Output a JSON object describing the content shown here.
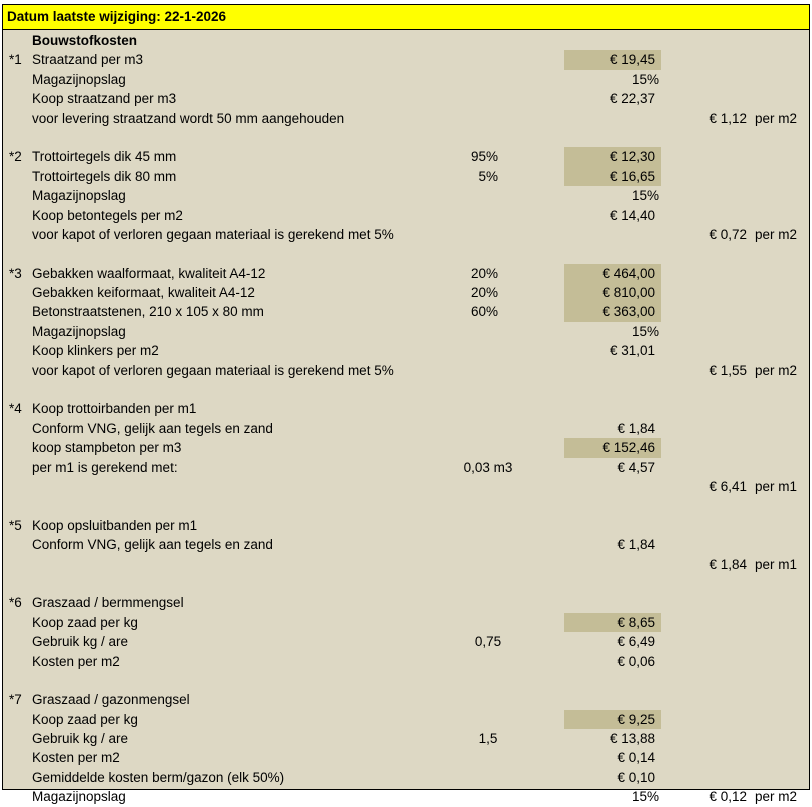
{
  "header": {
    "title": "Datum laatste wijziging: 22-1-2026"
  },
  "colors": {
    "header_bg": "#ffff00",
    "sheet_bg": "#ddd8c4",
    "input_cell_bg": "#c4bd97"
  },
  "rows": [
    {
      "label": "Bouwstofkosten",
      "bold": true
    },
    {
      "prefix": "*1",
      "label": "Straatzand per m3",
      "value": "€ 19,45",
      "highlight": true
    },
    {
      "label": "Magazijnopslag",
      "value": "15%"
    },
    {
      "label": "Koop straatzand per m3",
      "value": "€ 22,37"
    },
    {
      "label": "voor levering straatzand wordt 50 mm aangehouden",
      "total": "€ 1,12",
      "unit": "per m2"
    },
    {},
    {
      "prefix": "*2",
      "label": "Trottoirtegels dik 45 mm",
      "pct": "95%",
      "value": "€ 12,30",
      "highlight": true
    },
    {
      "label": "Trottoirtegels dik 80 mm",
      "pct": "5%",
      "value": "€ 16,65",
      "highlight": true
    },
    {
      "label": "Magazijnopslag",
      "value": "15%"
    },
    {
      "label": "Koop betontegels per m2",
      "value": "€ 14,40"
    },
    {
      "label": "voor kapot of verloren gegaan materiaal is gerekend met 5%",
      "total": "€ 0,72",
      "unit": "per m2"
    },
    {},
    {
      "prefix": "*3",
      "label": "Gebakken waalformaat, kwaliteit A4-12",
      "pct": "20%",
      "value": "€ 464,00",
      "highlight": true
    },
    {
      "label": "Gebakken keiformaat, kwaliteit A4-12",
      "pct": "20%",
      "value": "€ 810,00",
      "highlight": true
    },
    {
      "label": "Betonstraatstenen, 210 x 105 x 80 mm",
      "pct": "60%",
      "value": "€ 363,00",
      "highlight": true
    },
    {
      "label": "Magazijnopslag",
      "value": "15%"
    },
    {
      "label": "Koop klinkers per m2",
      "value": "€ 31,01"
    },
    {
      "label": "voor kapot of verloren gegaan materiaal is gerekend met 5%",
      "total": "€ 1,55",
      "unit": "per m2"
    },
    {},
    {
      "prefix": "*4",
      "label": "Koop trottoirbanden per m1"
    },
    {
      "label": "Conform VNG, gelijk aan tegels en zand",
      "value": "€ 1,84"
    },
    {
      "label": "koop stampbeton per m3",
      "value": "€ 152,46",
      "highlight": true
    },
    {
      "label": "per m1 is gerekend met:",
      "pct": "0,03 m3",
      "value": "€ 4,57"
    },
    {
      "total": "€ 6,41",
      "unit": "per m1"
    },
    {},
    {
      "prefix": "*5",
      "label": "Koop opsluitbanden per m1"
    },
    {
      "label": "Conform VNG, gelijk aan tegels en zand",
      "value": "€ 1,84"
    },
    {
      "total": "€ 1,84",
      "unit": "per m1"
    },
    {},
    {
      "prefix": "*6",
      "label": "Graszaad / bermmengsel"
    },
    {
      "label": "Koop zaad per kg",
      "value": "€ 8,65",
      "highlight": true
    },
    {
      "label": "Gebruik kg / are",
      "pct": "0,75",
      "value": "€ 6,49"
    },
    {
      "label": "Kosten per m2",
      "value": "€ 0,06"
    },
    {},
    {
      "prefix": "*7",
      "label": "Graszaad / gazonmengsel"
    },
    {
      "label": "Koop zaad per kg",
      "value": "€ 9,25",
      "highlight": true
    },
    {
      "label": "Gebruik kg / are",
      "pct": "1,5",
      "value": "€ 13,88"
    },
    {
      "label": "Kosten per m2",
      "value": "€ 0,14"
    },
    {
      "label": "Gemiddelde kosten berm/gazon (elk 50%)",
      "value": "€ 0,10"
    },
    {
      "label": "Magazijnopslag",
      "value": "15%",
      "total": "€ 0,12",
      "unit": "per m2"
    }
  ]
}
